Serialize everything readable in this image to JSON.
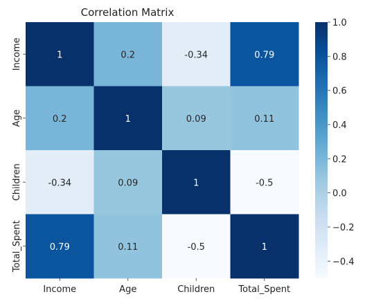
{
  "chart_data": {
    "type": "heatmap",
    "title": "Correlation Matrix",
    "x_categories": [
      "Income",
      "Age",
      "Children",
      "Total_Spent"
    ],
    "y_categories": [
      "Income",
      "Age",
      "Children",
      "Total_Spent"
    ],
    "matrix": [
      [
        1,
        0.2,
        -0.34,
        0.79
      ],
      [
        0.2,
        1,
        0.09,
        0.11
      ],
      [
        -0.34,
        0.09,
        1,
        -0.5
      ],
      [
        0.79,
        0.11,
        -0.5,
        1
      ]
    ],
    "annotations": [
      [
        "1",
        "0.2",
        "-0.34",
        "0.79"
      ],
      [
        "0.2",
        "1",
        "0.09",
        "0.11"
      ],
      [
        "-0.34",
        "0.09",
        "1",
        "-0.5"
      ],
      [
        "0.79",
        "0.11",
        "-0.5",
        "1"
      ]
    ],
    "colormap": "Blues",
    "colorbar": {
      "range": [
        -0.5,
        1.0
      ],
      "ticks": [
        1.0,
        0.8,
        0.6,
        0.4,
        0.2,
        0.0,
        -0.2,
        -0.4
      ],
      "tick_labels": [
        "1.0",
        "0.8",
        "0.6",
        "0.4",
        "0.2",
        "0.0",
        "−0.2",
        "−0.4"
      ]
    },
    "grid": false,
    "legend": "colorbar-right"
  }
}
